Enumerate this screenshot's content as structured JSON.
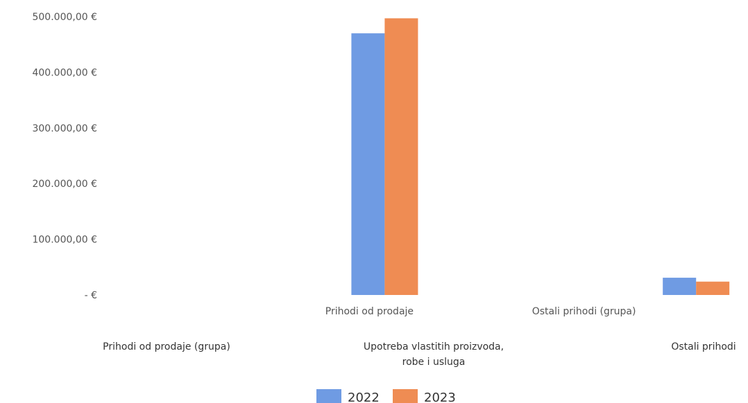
{
  "chart_data": {
    "type": "bar",
    "title": "",
    "xlabel": "",
    "ylabel": "",
    "ylim": [
      0,
      500000
    ],
    "y_ticks": [
      {
        "value": 500000,
        "label": "500.000,00 €"
      },
      {
        "value": 400000,
        "label": "400.000,00 €"
      },
      {
        "value": 300000,
        "label": "300.000,00 €"
      },
      {
        "value": 200000,
        "label": "200.000,00 €"
      },
      {
        "value": 100000,
        "label": "100.000,00 €"
      },
      {
        "value": 0,
        "label": "-   €"
      }
    ],
    "categories": [
      "Prihodi od prodaje (grupa)",
      "Prihodi od prodaje",
      "Upotreba vlastitih proizvoda, robe i usluga",
      "Ostali prihodi (grupa)",
      "Ostali prihodi"
    ],
    "category_labels_level1": [
      "Prihodi od prodaje",
      "Ostali prihodi (grupa)"
    ],
    "category_labels_level2": [
      [
        "Prihodi od prodaje (grupa)"
      ],
      [
        "Upotreba vlastitih proizvoda,",
        "robe i usluga"
      ],
      [
        "Ostali prihodi"
      ]
    ],
    "series": [
      {
        "name": "2022",
        "color": "#6f9be3",
        "values": [
          0,
          470000,
          0,
          0,
          31000
        ]
      },
      {
        "name": "2023",
        "color": "#ef8c53",
        "values": [
          0,
          497000,
          0,
          0,
          24000
        ]
      }
    ],
    "grid": false,
    "legend_position": "bottom"
  }
}
